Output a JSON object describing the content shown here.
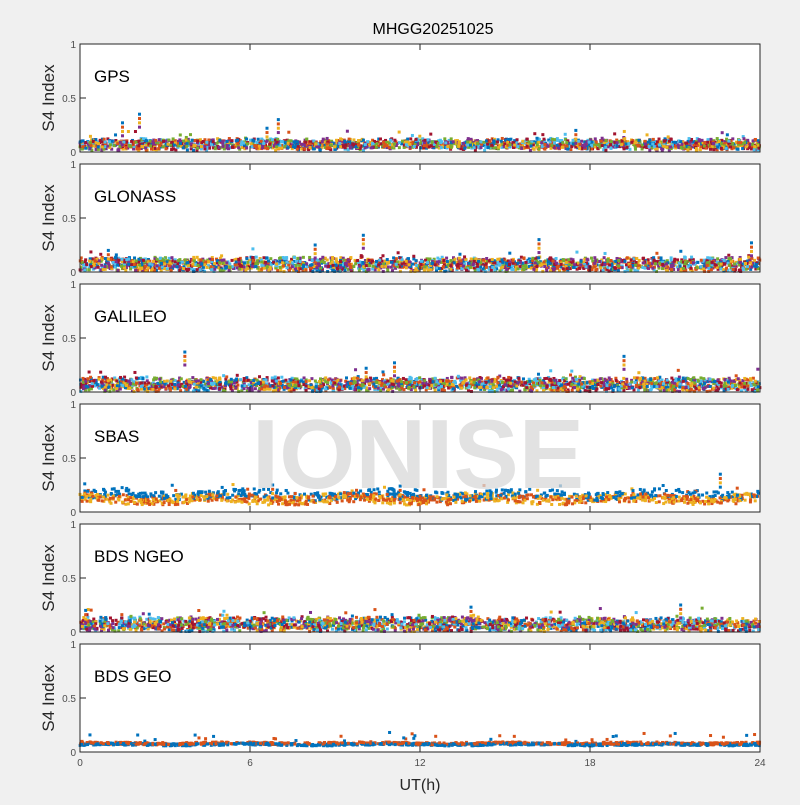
{
  "chart_data": {
    "type": "scatter",
    "title": "MHGG20251025",
    "xlabel": "UT(h)",
    "ylabel": "S4 Index",
    "xlim": [
      0,
      24
    ],
    "ylim": [
      0,
      1
    ],
    "x_ticks": [
      "0",
      "6",
      "12",
      "18",
      "24"
    ],
    "y_ticks": [
      "0",
      "0.5",
      "1"
    ],
    "watermark": "IONISE",
    "series_colors": [
      "#0072BD",
      "#D95319",
      "#EDB120",
      "#7E2F8E",
      "#77AC30",
      "#4DBEEE",
      "#A2142F"
    ],
    "panels": [
      {
        "label": "GPS",
        "n_series": 7,
        "typical_s4": 0.07,
        "spread": 0.04,
        "peaks": [
          {
            "x": 2.1,
            "y": 0.35
          },
          {
            "x": 1.5,
            "y": 0.27
          },
          {
            "x": 7.0,
            "y": 0.3
          },
          {
            "x": 6.6,
            "y": 0.22
          },
          {
            "x": 17.5,
            "y": 0.2
          }
        ]
      },
      {
        "label": "GLONASS",
        "n_series": 7,
        "typical_s4": 0.07,
        "spread": 0.05,
        "peaks": [
          {
            "x": 10.0,
            "y": 0.34
          },
          {
            "x": 8.3,
            "y": 0.25
          },
          {
            "x": 16.2,
            "y": 0.3
          },
          {
            "x": 23.7,
            "y": 0.27
          },
          {
            "x": 1.0,
            "y": 0.2
          }
        ]
      },
      {
        "label": "GALILEO",
        "n_series": 7,
        "typical_s4": 0.07,
        "spread": 0.05,
        "peaks": [
          {
            "x": 3.7,
            "y": 0.37
          },
          {
            "x": 11.1,
            "y": 0.27
          },
          {
            "x": 19.2,
            "y": 0.33
          },
          {
            "x": 10.1,
            "y": 0.22
          }
        ]
      },
      {
        "label": "SBAS",
        "n_series": 3,
        "typical_s4": 0.12,
        "spread": 0.04,
        "peaks": [
          {
            "x": 22.6,
            "y": 0.35
          },
          {
            "x": 6.8,
            "y": 0.25
          },
          {
            "x": 11.3,
            "y": 0.24
          }
        ]
      },
      {
        "label": "BDS NGEO",
        "n_series": 7,
        "typical_s4": 0.07,
        "spread": 0.05,
        "peaks": [
          {
            "x": 13.8,
            "y": 0.23
          },
          {
            "x": 21.2,
            "y": 0.25
          },
          {
            "x": 0.2,
            "y": 0.2
          }
        ]
      },
      {
        "label": "BDS GEO",
        "n_series": 2,
        "typical_s4": 0.08,
        "spread": 0.01,
        "peaks": []
      }
    ]
  }
}
